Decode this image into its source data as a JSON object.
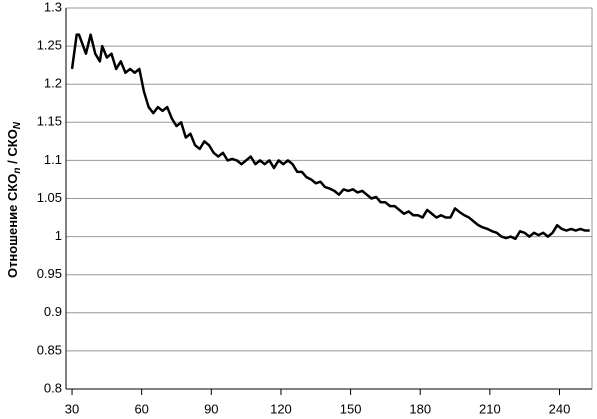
{
  "chart_data": {
    "type": "line",
    "y_label": [
      "Отношение СКО",
      "n",
      " / СКО",
      "N"
    ],
    "x": [
      30,
      32,
      33,
      36,
      38,
      40,
      42,
      43,
      45,
      47,
      49,
      51,
      53,
      55,
      57,
      59,
      61,
      63,
      65,
      67,
      69,
      71,
      73,
      75,
      77,
      79,
      81,
      83,
      85,
      87,
      89,
      91,
      93,
      95,
      97,
      99,
      101,
      103,
      105,
      107,
      109,
      111,
      113,
      115,
      117,
      119,
      121,
      123,
      125,
      127,
      129,
      131,
      133,
      135,
      137,
      139,
      141,
      143,
      145,
      147,
      149,
      151,
      153,
      155,
      157,
      159,
      161,
      163,
      165,
      167,
      169,
      171,
      173,
      175,
      177,
      179,
      181,
      183,
      185,
      187,
      189,
      191,
      193,
      195,
      197,
      199,
      201,
      203,
      205,
      207,
      209,
      211,
      213,
      215,
      217,
      219,
      221,
      223,
      225,
      227,
      229,
      231,
      233,
      235,
      237,
      239,
      241,
      243,
      245,
      247,
      249,
      251,
      253
    ],
    "series": [
      {
        "color": "#000000",
        "values": [
          1.22,
          1.265,
          1.265,
          1.24,
          1.265,
          1.24,
          1.23,
          1.25,
          1.235,
          1.24,
          1.22,
          1.23,
          1.215,
          1.22,
          1.215,
          1.22,
          1.19,
          1.17,
          1.162,
          1.17,
          1.165,
          1.17,
          1.155,
          1.145,
          1.15,
          1.13,
          1.135,
          1.12,
          1.115,
          1.125,
          1.12,
          1.11,
          1.105,
          1.11,
          1.1,
          1.102,
          1.1,
          1.095,
          1.1,
          1.105,
          1.095,
          1.1,
          1.095,
          1.1,
          1.09,
          1.1,
          1.095,
          1.1,
          1.095,
          1.085,
          1.085,
          1.078,
          1.075,
          1.07,
          1.072,
          1.065,
          1.063,
          1.06,
          1.055,
          1.062,
          1.06,
          1.062,
          1.058,
          1.06,
          1.055,
          1.05,
          1.052,
          1.045,
          1.045,
          1.04,
          1.04,
          1.035,
          1.03,
          1.033,
          1.028,
          1.028,
          1.025,
          1.035,
          1.03,
          1.025,
          1.028,
          1.025,
          1.025,
          1.037,
          1.032,
          1.028,
          1.025,
          1.02,
          1.015,
          1.012,
          1.01,
          1.007,
          1.005,
          1.0,
          0.998,
          1.0,
          0.997,
          1.007,
          1.005,
          1.0,
          1.005,
          1.002,
          1.005,
          1.0,
          1.005,
          1.015,
          1.01,
          1.008,
          1.01,
          1.008,
          1.01,
          1.008,
          1.008
        ]
      }
    ],
    "xlim": [
      27.4,
      254
    ],
    "xticks": [
      30,
      60,
      90,
      120,
      150,
      180,
      210,
      240
    ],
    "ylim": [
      0.8,
      1.3
    ],
    "yticks": [
      0.8,
      0.85,
      0.9,
      0.95,
      1,
      1.05,
      1.1,
      1.15,
      1.2,
      1.25,
      1.3
    ],
    "grid": true
  }
}
